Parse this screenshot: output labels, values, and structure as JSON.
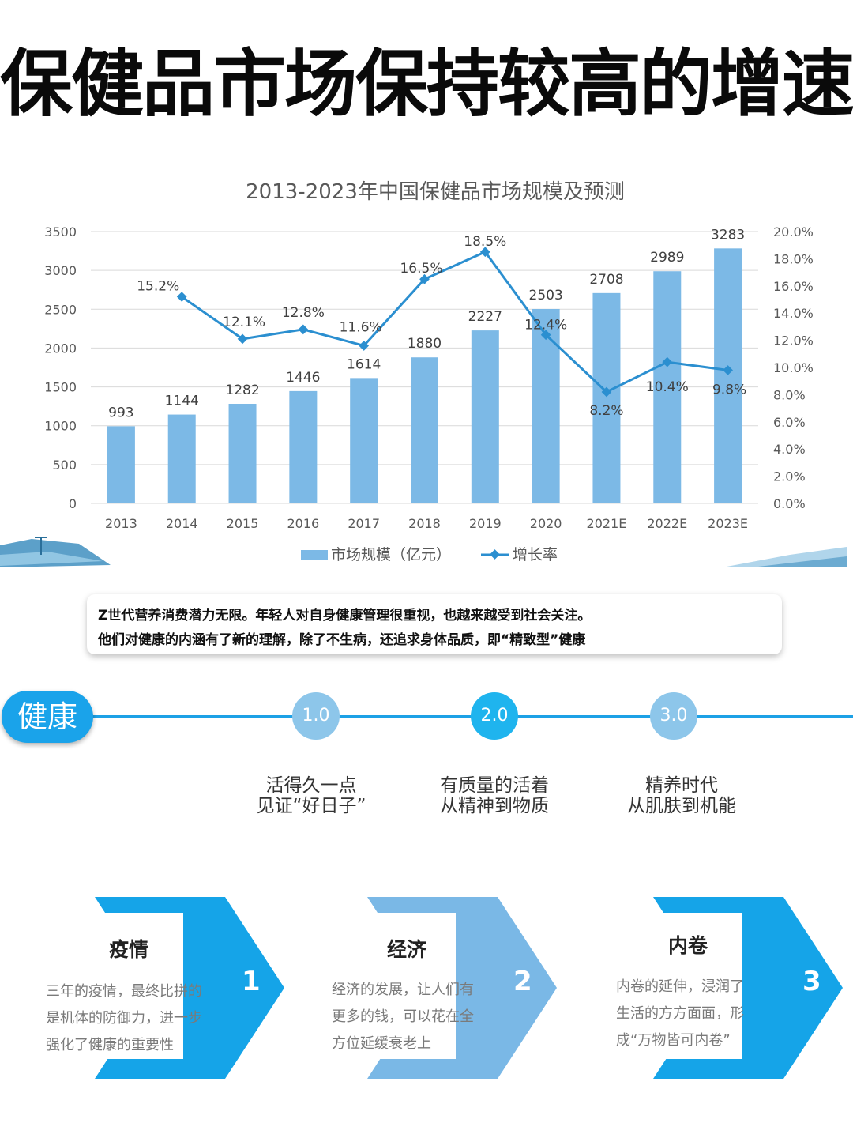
{
  "headline": "保健品市场保持较高的增速",
  "chart_data": {
    "type": "bar",
    "title": "2013-2023年中国保健品市场规模及预测",
    "categories": [
      "2013",
      "2014",
      "2015",
      "2016",
      "2017",
      "2018",
      "2019",
      "2020",
      "2021E",
      "2022E",
      "2023E"
    ],
    "series": [
      {
        "name": "市场规模（亿元）",
        "type": "bar",
        "axis": "left",
        "values": [
          993,
          1144,
          1282,
          1446,
          1614,
          1880,
          2227,
          2503,
          2708,
          2989,
          3283
        ],
        "labels": [
          "993",
          "1144",
          "1282",
          "1446",
          "1614",
          "1880",
          "2227",
          "2503",
          "2708",
          "2989",
          "3283"
        ]
      },
      {
        "name": "增长率",
        "type": "line",
        "axis": "right",
        "values": [
          null,
          15.2,
          12.1,
          12.8,
          11.6,
          16.5,
          18.5,
          12.4,
          8.2,
          10.4,
          9.8
        ],
        "labels": [
          "",
          "15.2%",
          "12.1%",
          "12.8%",
          "11.6%",
          "16.5%",
          "18.5%",
          "12.4%",
          "8.2%",
          "10.4%",
          "9.8%"
        ]
      }
    ],
    "ylim": [
      0,
      3500
    ],
    "yticks": [
      "0",
      "500",
      "1000",
      "1500",
      "2000",
      "2500",
      "3000",
      "3500"
    ],
    "y2lim": [
      0,
      20
    ],
    "y2ticks": [
      "0.0%",
      "2.0%",
      "4.0%",
      "6.0%",
      "8.0%",
      "10.0%",
      "12.0%",
      "14.0%",
      "16.0%",
      "18.0%",
      "20.0%"
    ],
    "grid": true,
    "legend_position": "bottom",
    "colors": {
      "bar": "#7cb9e6",
      "line": "#2b8fd0",
      "grid": "#d9d9d9"
    }
  },
  "callout": {
    "line1": "Z世代营养消费潜力无限。年轻人对自身健康管理很重视，也越来越受到社会关注。",
    "line2": "他们对健康的内涵有了新的理解，除了不生病，还追求身体品质，即“精致型”健康"
  },
  "timeline": {
    "label": "健康",
    "stages": [
      {
        "number": "1.0",
        "line1": "活得久一点",
        "line2": "见证“好日子”",
        "color": "#8dc6ea"
      },
      {
        "number": "2.0",
        "line1": "有质量的活着",
        "line2": "从精神到物质",
        "color": "#1fb4ee"
      },
      {
        "number": "3.0",
        "line1": "精养时代",
        "line2": "从肌肤到机能",
        "color": "#8dc6ea"
      }
    ]
  },
  "cards": [
    {
      "title": "疫情",
      "number": "1",
      "color": "#15a4e8",
      "lines": [
        "三年的疫情，最终比拼的",
        "是机体的防御力，进一步",
        "强化了健康的重要性"
      ]
    },
    {
      "title": "经济",
      "number": "2",
      "color": "#7ab8e6",
      "lines": [
        "经济的发展，让人们有",
        "更多的钱，可以花在全",
        "方位延缓衰老上"
      ]
    },
    {
      "title": "内卷",
      "number": "3",
      "color": "#15a4e8",
      "lines": [
        "内卷的延伸，浸润了",
        "生活的方方面面，形",
        "成“万物皆可内卷”"
      ]
    }
  ]
}
